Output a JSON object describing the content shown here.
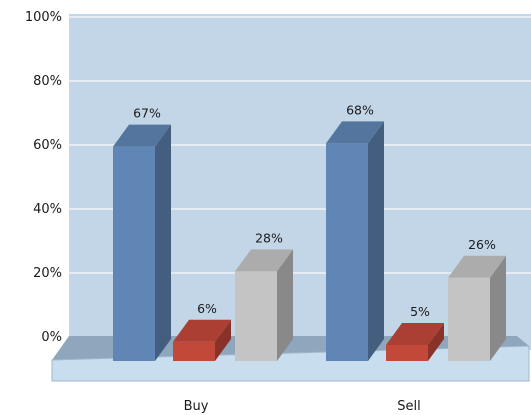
{
  "chart_data": {
    "type": "bar",
    "style": "3d-clustered-column",
    "categories": [
      "Buy",
      "Sell"
    ],
    "series": [
      {
        "values": [
          67,
          68
        ],
        "labels": [
          "67%",
          "68%"
        ],
        "color": "#5f86b4"
      },
      {
        "values": [
          6,
          5
        ],
        "labels": [
          "6%",
          "5%"
        ],
        "color": "#c2483a"
      },
      {
        "values": [
          28,
          26
        ],
        "labels": [
          "28%",
          "26%"
        ],
        "color": "#c4c4c4"
      }
    ],
    "ylim": [
      0,
      100
    ],
    "yticks": [
      0,
      20,
      40,
      60,
      80,
      100
    ],
    "ytick_labels": [
      "0%",
      "20%",
      "40%",
      "60%",
      "80%",
      "100%"
    ],
    "grid": true,
    "legend": "none",
    "title": "",
    "xlabel": "",
    "ylabel": "",
    "colors": {
      "plot_background": "#c3d6e8",
      "floor": "#8fa7bc",
      "base_front": "#c8ddee"
    }
  }
}
